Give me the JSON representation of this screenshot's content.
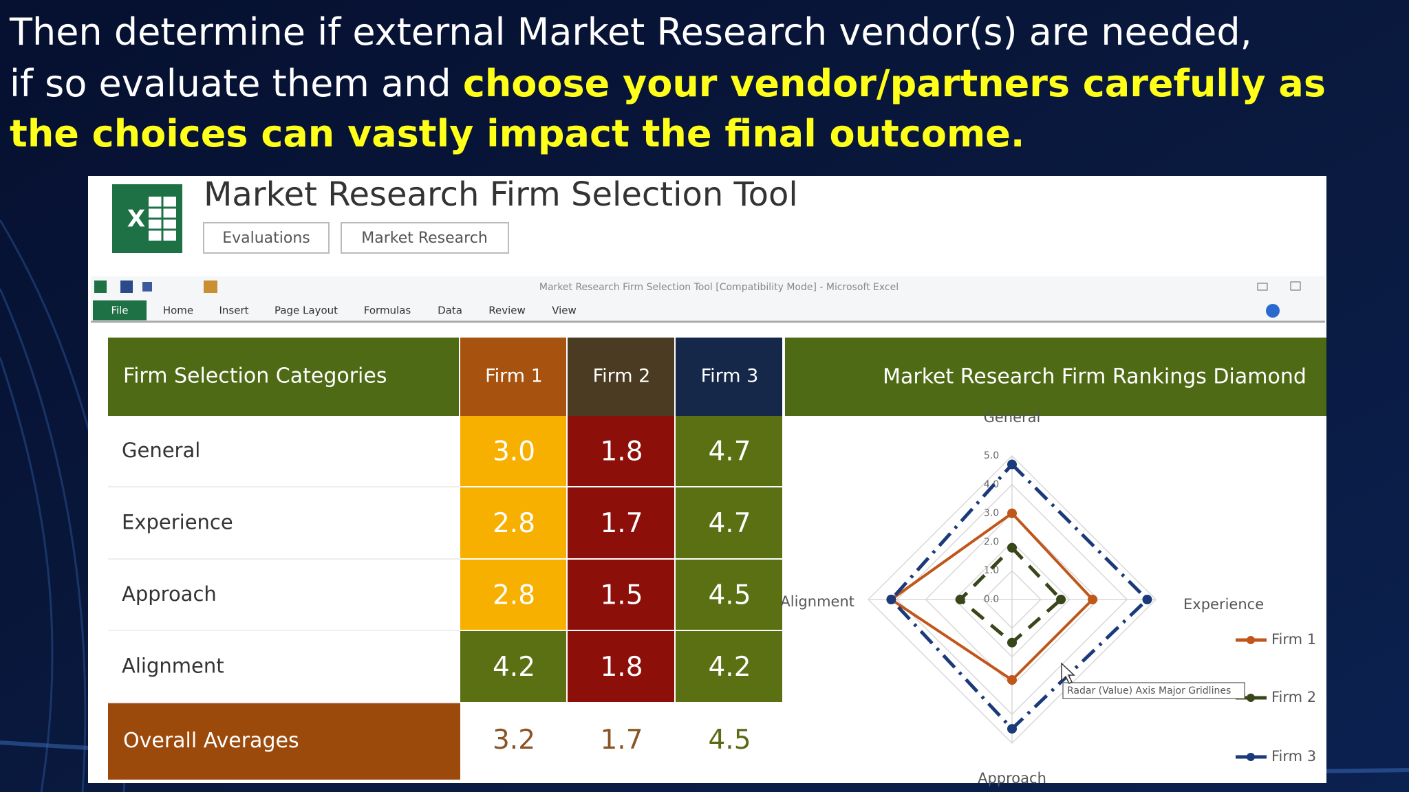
{
  "heading": {
    "plain": [
      "Then determine if external Market Research vendor(s) are needed,",
      "if so evaluate them and"
    ],
    "highlight": [
      "choose your vendor/partners carefully as",
      "the choices can vastly impact the final outcome."
    ]
  },
  "app": {
    "title": "Market Research Firm Selection Tool",
    "buttons": [
      "Evaluations",
      "Market Research"
    ]
  },
  "excel": {
    "window_title": "Market Research Firm Selection Tool [Compatibility Mode] - Microsoft Excel",
    "tabs": [
      "File",
      "Home",
      "Insert",
      "Page Layout",
      "Formulas",
      "Data",
      "Review",
      "View"
    ]
  },
  "table": {
    "header": [
      "Firm Selection Categories",
      "Firm 1",
      "Firm 2",
      "Firm 3"
    ],
    "header_fills": [
      "#4f6a14",
      "#a8520f",
      "#4a3b22",
      "#16284a"
    ],
    "rows": [
      {
        "label": "General",
        "cells": [
          "3.0",
          "1.8",
          "4.7"
        ],
        "fills": [
          "#f7b000",
          "#8c0f0a",
          "#5b7012"
        ]
      },
      {
        "label": "Experience",
        "cells": [
          "2.8",
          "1.7",
          "4.7"
        ],
        "fills": [
          "#f7b000",
          "#8c0f0a",
          "#5b7012"
        ]
      },
      {
        "label": "Approach",
        "cells": [
          "2.8",
          "1.5",
          "4.5"
        ],
        "fills": [
          "#f7b000",
          "#8c0f0a",
          "#5b7012"
        ]
      },
      {
        "label": "Alignment",
        "cells": [
          "4.2",
          "1.8",
          "4.2"
        ],
        "fills": [
          "#5b7012",
          "#8c0f0a",
          "#5b7012"
        ]
      }
    ],
    "summary": {
      "label": "Overall Averages",
      "cells": [
        "3.2",
        "1.7",
        "4.5"
      ],
      "colors": [
        "#8a5424",
        "#8a5424",
        "#5b6a14"
      ]
    }
  },
  "chart_data": {
    "type": "radar",
    "title": "Market Research Firm Rankings Diamond",
    "categories": [
      "General",
      "Experience",
      "Approach",
      "Alignment"
    ],
    "series": [
      {
        "name": "Firm 1",
        "color": "#c0561a",
        "values": [
          3.0,
          2.8,
          2.8,
          4.2
        ]
      },
      {
        "name": "Firm 2",
        "color": "#38461a",
        "values": [
          1.8,
          1.7,
          1.5,
          1.8
        ]
      },
      {
        "name": "Firm 3",
        "color": "#1a3a7a",
        "values": [
          4.7,
          4.7,
          4.5,
          4.2
        ]
      }
    ],
    "rlim": [
      0,
      5
    ],
    "rticks": [
      {
        "value": 0,
        "label": "0.0"
      },
      {
        "value": 1,
        "label": "1.0"
      },
      {
        "value": 2,
        "label": "2.0"
      },
      {
        "value": 3,
        "label": "3.0"
      },
      {
        "value": 4,
        "label": "4.0"
      },
      {
        "value": 5,
        "label": "5.0"
      }
    ],
    "grid": true,
    "legend": "right"
  },
  "tooltip": "Radar (Value) Axis Major Gridlines"
}
